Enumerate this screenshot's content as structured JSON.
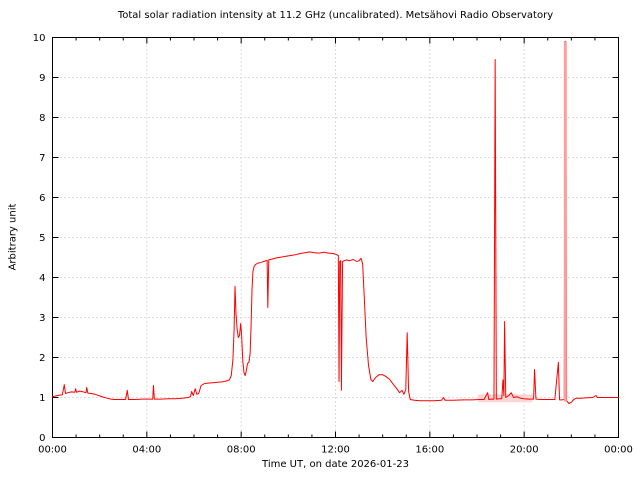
{
  "chart_data": {
    "type": "line",
    "title": "Total solar radiation intensity at 11.2 GHz (uncalibrated). Metsähovi Radio Observatory",
    "xlabel": "Time UT, on date 2026-01-23",
    "ylabel": "Arbitrary unit",
    "xlim_hours": [
      0,
      24
    ],
    "ylim": [
      0,
      10
    ],
    "x_major_ticks_hours": [
      0,
      4,
      8,
      12,
      16,
      20,
      24
    ],
    "x_tick_labels": [
      "00:00",
      "04:00",
      "08:00",
      "12:00",
      "16:00",
      "20:00",
      "00:00"
    ],
    "x_minor_tick_interval_hours": 1,
    "y_ticks": [
      0,
      1,
      2,
      3,
      4,
      5,
      6,
      7,
      8,
      9,
      10
    ],
    "grid": true,
    "legend": "none",
    "line_color": "#ff0000",
    "grid_color": "#b9b9b9",
    "frame_color": "#000000",
    "saturated_spike": {
      "t": 21.745,
      "v0": 0.9,
      "v1": 9.9,
      "color": "#ff9c9c",
      "width": 3
    },
    "noise_band": {
      "t0": 18.05,
      "t1": 20.35,
      "v0": 0.88,
      "v1": 1.08,
      "color": "#ffd6d6"
    },
    "points": [
      [
        0.0,
        1.02
      ],
      [
        0.15,
        1.04
      ],
      [
        0.3,
        1.06
      ],
      [
        0.42,
        1.07
      ],
      [
        0.5,
        1.32
      ],
      [
        0.55,
        1.1
      ],
      [
        0.65,
        1.12
      ],
      [
        0.8,
        1.14
      ],
      [
        0.95,
        1.13
      ],
      [
        0.98,
        1.22
      ],
      [
        1.02,
        1.13
      ],
      [
        1.15,
        1.16
      ],
      [
        1.3,
        1.14
      ],
      [
        1.42,
        1.12
      ],
      [
        1.45,
        1.25
      ],
      [
        1.5,
        1.11
      ],
      [
        1.65,
        1.1
      ],
      [
        1.8,
        1.08
      ],
      [
        2.0,
        1.04
      ],
      [
        2.2,
        1.0
      ],
      [
        2.4,
        0.97
      ],
      [
        2.6,
        0.95
      ],
      [
        2.9,
        0.95
      ],
      [
        3.1,
        0.95
      ],
      [
        3.17,
        1.18
      ],
      [
        3.22,
        0.95
      ],
      [
        3.5,
        0.95
      ],
      [
        3.8,
        0.96
      ],
      [
        4.1,
        0.96
      ],
      [
        4.25,
        0.96
      ],
      [
        4.28,
        1.3
      ],
      [
        4.32,
        0.96
      ],
      [
        4.6,
        0.96
      ],
      [
        4.9,
        0.97
      ],
      [
        5.2,
        0.97
      ],
      [
        5.5,
        0.98
      ],
      [
        5.75,
        1.0
      ],
      [
        5.85,
        1.02
      ],
      [
        5.9,
        1.15
      ],
      [
        5.97,
        1.05
      ],
      [
        6.05,
        1.22
      ],
      [
        6.12,
        1.08
      ],
      [
        6.2,
        1.1
      ],
      [
        6.3,
        1.3
      ],
      [
        6.45,
        1.35
      ],
      [
        6.6,
        1.36
      ],
      [
        6.8,
        1.37
      ],
      [
        7.0,
        1.38
      ],
      [
        7.2,
        1.39
      ],
      [
        7.35,
        1.41
      ],
      [
        7.5,
        1.44
      ],
      [
        7.58,
        1.55
      ],
      [
        7.65,
        1.95
      ],
      [
        7.7,
        2.7
      ],
      [
        7.74,
        3.78
      ],
      [
        7.78,
        3.1
      ],
      [
        7.83,
        2.7
      ],
      [
        7.88,
        2.5
      ],
      [
        7.93,
        2.55
      ],
      [
        7.98,
        2.85
      ],
      [
        8.02,
        2.55
      ],
      [
        8.07,
        1.9
      ],
      [
        8.12,
        1.62
      ],
      [
        8.17,
        1.55
      ],
      [
        8.22,
        1.68
      ],
      [
        8.27,
        1.85
      ],
      [
        8.33,
        1.88
      ],
      [
        8.38,
        2.1
      ],
      [
        8.42,
        2.8
      ],
      [
        8.46,
        3.7
      ],
      [
        8.5,
        4.15
      ],
      [
        8.55,
        4.28
      ],
      [
        8.62,
        4.33
      ],
      [
        8.72,
        4.36
      ],
      [
        8.85,
        4.38
      ],
      [
        9.0,
        4.41
      ],
      [
        9.1,
        4.43
      ],
      [
        9.13,
        3.25
      ],
      [
        9.17,
        4.44
      ],
      [
        9.3,
        4.46
      ],
      [
        9.5,
        4.49
      ],
      [
        9.7,
        4.51
      ],
      [
        9.9,
        4.53
      ],
      [
        10.1,
        4.55
      ],
      [
        10.3,
        4.57
      ],
      [
        10.5,
        4.6
      ],
      [
        10.7,
        4.62
      ],
      [
        10.9,
        4.64
      ],
      [
        11.1,
        4.62
      ],
      [
        11.3,
        4.61
      ],
      [
        11.5,
        4.63
      ],
      [
        11.7,
        4.61
      ],
      [
        11.9,
        4.6
      ],
      [
        12.05,
        4.57
      ],
      [
        12.12,
        4.55
      ],
      [
        12.15,
        1.4
      ],
      [
        12.18,
        4.4
      ],
      [
        12.22,
        4.42
      ],
      [
        12.25,
        1.18
      ],
      [
        12.3,
        4.4
      ],
      [
        12.45,
        4.44
      ],
      [
        12.6,
        4.42
      ],
      [
        12.75,
        4.45
      ],
      [
        12.9,
        4.4
      ],
      [
        13.0,
        4.42
      ],
      [
        13.08,
        4.48
      ],
      [
        13.15,
        4.35
      ],
      [
        13.22,
        3.5
      ],
      [
        13.3,
        2.5
      ],
      [
        13.4,
        1.8
      ],
      [
        13.5,
        1.45
      ],
      [
        13.58,
        1.4
      ],
      [
        13.7,
        1.5
      ],
      [
        13.85,
        1.57
      ],
      [
        14.0,
        1.57
      ],
      [
        14.15,
        1.52
      ],
      [
        14.3,
        1.45
      ],
      [
        14.45,
        1.33
      ],
      [
        14.6,
        1.22
      ],
      [
        14.72,
        1.12
      ],
      [
        14.82,
        1.18
      ],
      [
        14.9,
        1.08
      ],
      [
        14.98,
        1.2
      ],
      [
        15.04,
        2.62
      ],
      [
        15.1,
        1.15
      ],
      [
        15.17,
        0.95
      ],
      [
        15.35,
        0.93
      ],
      [
        15.6,
        0.92
      ],
      [
        15.9,
        0.92
      ],
      [
        16.2,
        0.92
      ],
      [
        16.5,
        0.93
      ],
      [
        16.57,
        1.0
      ],
      [
        16.65,
        0.93
      ],
      [
        17.0,
        0.93
      ],
      [
        17.4,
        0.94
      ],
      [
        17.8,
        0.94
      ],
      [
        18.1,
        0.95
      ],
      [
        18.3,
        0.95
      ],
      [
        18.45,
        1.12
      ],
      [
        18.5,
        0.95
      ],
      [
        18.6,
        0.96
      ],
      [
        18.72,
        0.96
      ],
      [
        18.77,
        9.45
      ],
      [
        18.82,
        0.96
      ],
      [
        18.95,
        0.97
      ],
      [
        19.05,
        0.97
      ],
      [
        19.1,
        1.44
      ],
      [
        19.14,
        1.05
      ],
      [
        19.17,
        2.9
      ],
      [
        19.22,
        1.0
      ],
      [
        19.35,
        1.05
      ],
      [
        19.45,
        1.12
      ],
      [
        19.55,
        1.0
      ],
      [
        19.7,
        1.02
      ],
      [
        19.85,
        0.98
      ],
      [
        20.0,
        0.97
      ],
      [
        20.2,
        0.96
      ],
      [
        20.4,
        0.96
      ],
      [
        20.44,
        1.7
      ],
      [
        20.5,
        0.96
      ],
      [
        20.7,
        0.95
      ],
      [
        20.9,
        0.95
      ],
      [
        21.1,
        0.95
      ],
      [
        21.3,
        0.95
      ],
      [
        21.45,
        1.88
      ],
      [
        21.5,
        0.94
      ],
      [
        21.6,
        0.94
      ],
      [
        21.7,
        0.95
      ],
      [
        21.73,
        9.9
      ],
      [
        21.76,
        9.9
      ],
      [
        21.8,
        0.92
      ],
      [
        21.9,
        0.85
      ],
      [
        22.0,
        0.88
      ],
      [
        22.1,
        0.95
      ],
      [
        22.2,
        0.98
      ],
      [
        22.4,
        0.98
      ],
      [
        22.6,
        0.99
      ],
      [
        22.9,
        1.0
      ],
      [
        23.05,
        1.05
      ],
      [
        23.1,
        1.0
      ],
      [
        23.3,
        1.0
      ],
      [
        23.5,
        1.0
      ],
      [
        23.7,
        1.0
      ],
      [
        23.9,
        1.0
      ],
      [
        24.0,
        1.0
      ]
    ]
  }
}
